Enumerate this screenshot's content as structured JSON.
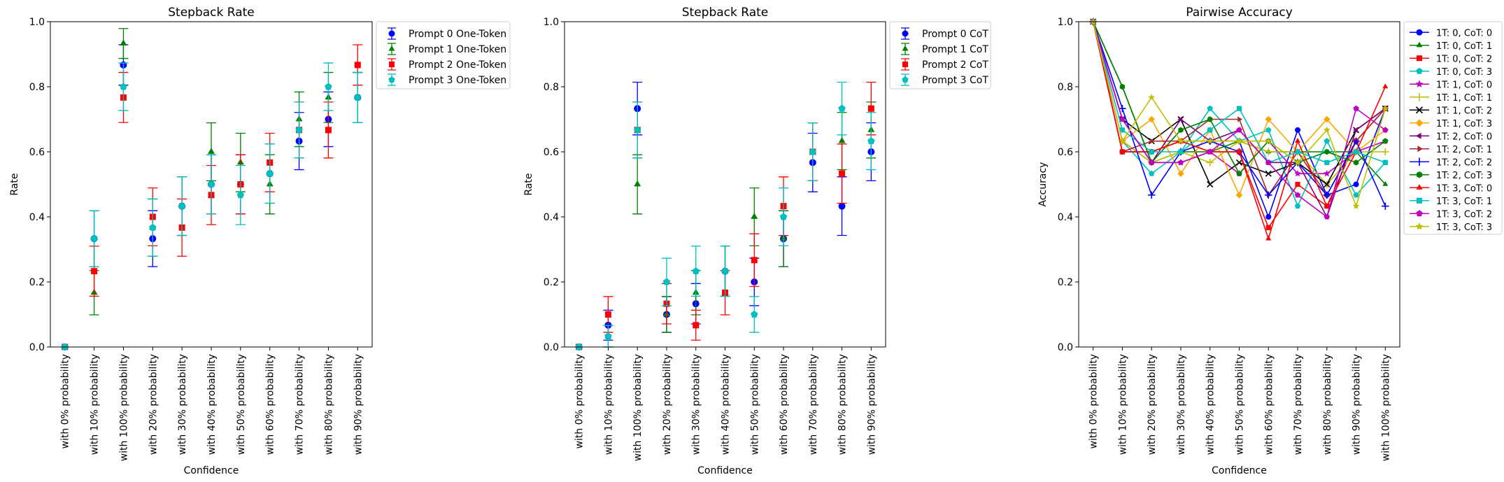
{
  "chart_data": [
    {
      "type": "scatter",
      "title": "Stepback Rate",
      "xlabel": "Confidence",
      "ylabel": "Rate",
      "ylim": [
        0,
        1
      ],
      "yticks": [
        "0.0",
        "0.2",
        "0.4",
        "0.6",
        "0.8",
        "1.0"
      ],
      "categories": [
        "with 0% probability",
        "with 10% probability",
        "with 100% probability",
        "with 20% probability",
        "with 30% probability",
        "with 40% probability",
        "with 50% probability",
        "with 60% probability",
        "with 70% probability",
        "with 80% probability",
        "with 90% probability"
      ],
      "legend_position": "outside-top-right",
      "error_bars": true,
      "series": [
        {
          "name": "Prompt 0 One-Token",
          "color": "#0000ff",
          "marker": "circle",
          "values": [
            0.0,
            0.333,
            0.867,
            0.333,
            0.433,
            0.5,
            0.5,
            0.533,
            0.633,
            0.7,
            0.767
          ],
          "errors": [
            0.0,
            0.086,
            0.062,
            0.086,
            0.09,
            0.091,
            0.091,
            0.091,
            0.088,
            0.084,
            0.077
          ]
        },
        {
          "name": "Prompt 1 One-Token",
          "color": "#008000",
          "marker": "triangle",
          "values": [
            0.0,
            0.167,
            0.933,
            0.367,
            0.433,
            0.6,
            0.567,
            0.5,
            0.7,
            0.767,
            0.767
          ],
          "errors": [
            0.0,
            0.068,
            0.046,
            0.088,
            0.09,
            0.089,
            0.09,
            0.091,
            0.084,
            0.077,
            0.077
          ]
        },
        {
          "name": "Prompt 2 One-Token",
          "color": "#ff0000",
          "marker": "square",
          "values": [
            0.0,
            0.233,
            0.767,
            0.4,
            0.367,
            0.467,
            0.5,
            0.567,
            0.667,
            0.667,
            0.867
          ],
          "errors": [
            0.0,
            0.077,
            0.077,
            0.089,
            0.088,
            0.091,
            0.091,
            0.09,
            0.086,
            0.086,
            0.062
          ]
        },
        {
          "name": "Prompt 3 One-Token",
          "color": "#00bfbf",
          "marker": "pentagon",
          "values": [
            0.0,
            0.333,
            0.8,
            0.367,
            0.433,
            0.5,
            0.467,
            0.533,
            0.667,
            0.8,
            0.767
          ],
          "errors": [
            0.0,
            0.086,
            0.073,
            0.088,
            0.09,
            0.091,
            0.091,
            0.091,
            0.086,
            0.073,
            0.077
          ]
        }
      ]
    },
    {
      "type": "scatter",
      "title": "Stepback Rate",
      "xlabel": "Confidence",
      "ylabel": "Rate",
      "ylim": [
        0,
        1
      ],
      "yticks": [
        "0.0",
        "0.2",
        "0.4",
        "0.6",
        "0.8",
        "1.0"
      ],
      "categories": [
        "with 0% probability",
        "with 10% probability",
        "with 100% probability",
        "with 20% probability",
        "with 30% probability",
        "with 40% probability",
        "with 50% probability",
        "with 60% probability",
        "with 70% probability",
        "with 80% probability",
        "with 90% probability"
      ],
      "legend_position": "outside-top-right",
      "error_bars": true,
      "series": [
        {
          "name": "Prompt 0 CoT",
          "color": "#0000ff",
          "marker": "circle",
          "values": [
            0.0,
            0.067,
            0.733,
            0.1,
            0.133,
            0.233,
            0.2,
            0.333,
            0.567,
            0.433,
            0.6
          ],
          "errors": [
            0.0,
            0.046,
            0.081,
            0.055,
            0.062,
            0.077,
            0.073,
            0.086,
            0.09,
            0.09,
            0.089
          ]
        },
        {
          "name": "Prompt 1 CoT",
          "color": "#008000",
          "marker": "triangle",
          "values": [
            0.0,
            0.033,
            0.5,
            0.1,
            0.167,
            0.233,
            0.4,
            0.333,
            0.6,
            0.633,
            0.667
          ],
          "errors": [
            0.0,
            0.033,
            0.091,
            0.055,
            0.068,
            0.077,
            0.089,
            0.086,
            0.089,
            0.088,
            0.086
          ]
        },
        {
          "name": "Prompt 2 CoT",
          "color": "#ff0000",
          "marker": "square",
          "values": [
            0.0,
            0.1,
            0.667,
            0.133,
            0.067,
            0.167,
            0.267,
            0.433,
            0.6,
            0.533,
            0.733
          ],
          "errors": [
            0.0,
            0.055,
            0.086,
            0.062,
            0.046,
            0.068,
            0.081,
            0.09,
            0.089,
            0.091,
            0.081
          ]
        },
        {
          "name": "Prompt 3 CoT",
          "color": "#00bfbf",
          "marker": "pentagon",
          "values": [
            0.0,
            0.033,
            0.667,
            0.2,
            0.233,
            0.233,
            0.1,
            0.4,
            0.6,
            0.733,
            0.633
          ],
          "errors": [
            0.0,
            0.033,
            0.086,
            0.073,
            0.077,
            0.077,
            0.055,
            0.089,
            0.089,
            0.081,
            0.088
          ]
        }
      ]
    },
    {
      "type": "line",
      "title": "Pairwise Accuracy",
      "xlabel": "Confidence",
      "ylabel": "Accuracy",
      "ylim": [
        0,
        1
      ],
      "yticks": [
        "0.0",
        "0.2",
        "0.4",
        "0.6",
        "0.8",
        "1.0"
      ],
      "categories": [
        "with 0% probability",
        "with 10% probability",
        "with 20% probability",
        "with 30% probability",
        "with 40% probability",
        "with 50% probability",
        "with 60% probability",
        "with 70% probability",
        "with 80% probability",
        "with 90% probability",
        "with 100% probability"
      ],
      "legend_position": "outside-top-right",
      "series": [
        {
          "name": "1T: 0, CoT: 0",
          "color": "#0000ff",
          "marker": "circle",
          "values": [
            1.0,
            0.6,
            0.6,
            0.633,
            0.633,
            0.633,
            0.4,
            0.667,
            0.467,
            0.5,
            0.733
          ]
        },
        {
          "name": "1T: 0, CoT: 1",
          "color": "#008000",
          "marker": "triangle",
          "values": [
            1.0,
            0.8,
            0.567,
            0.6,
            0.6,
            0.633,
            0.6,
            0.6,
            0.6,
            0.6,
            0.5
          ]
        },
        {
          "name": "1T: 0, CoT: 2",
          "color": "#ff0000",
          "marker": "square",
          "values": [
            1.0,
            0.6,
            0.6,
            0.633,
            0.6,
            0.6,
            0.367,
            0.5,
            0.433,
            0.633,
            0.733
          ]
        },
        {
          "name": "1T: 0, CoT: 3",
          "color": "#00bfbf",
          "marker": "pentagon",
          "values": [
            1.0,
            0.633,
            0.533,
            0.6,
            0.733,
            0.633,
            0.667,
            0.433,
            0.633,
            0.467,
            0.567
          ]
        },
        {
          "name": "1T: 1, CoT: 0",
          "color": "#bf00bf",
          "marker": "star",
          "values": [
            1.0,
            0.633,
            0.567,
            0.567,
            0.6,
            0.533,
            0.633,
            0.533,
            0.533,
            0.6,
            0.633
          ]
        },
        {
          "name": "1T: 1, CoT: 1",
          "color": "#bfbf00",
          "marker": "plus",
          "values": [
            1.0,
            0.633,
            0.567,
            0.6,
            0.567,
            0.633,
            0.6,
            0.6,
            0.5,
            0.6,
            0.6
          ]
        },
        {
          "name": "1T: 1, CoT: 2",
          "color": "#000000",
          "marker": "x",
          "values": [
            1.0,
            0.7,
            0.633,
            0.7,
            0.5,
            0.567,
            0.533,
            0.567,
            0.5,
            0.667,
            0.733
          ]
        },
        {
          "name": "1T: 1, CoT: 3",
          "color": "#ffa500",
          "marker": "diamond",
          "values": [
            1.0,
            0.633,
            0.7,
            0.533,
            0.667,
            0.467,
            0.7,
            0.6,
            0.7,
            0.6,
            0.667
          ]
        },
        {
          "name": "1T: 2, CoT: 0",
          "color": "#800080",
          "marker": "triangle-left",
          "values": [
            1.0,
            0.7,
            0.567,
            0.7,
            0.633,
            0.667,
            0.567,
            0.567,
            0.4,
            0.667,
            0.733
          ]
        },
        {
          "name": "1T: 2, CoT: 1",
          "color": "#a52a2a",
          "marker": "triangle-right",
          "values": [
            1.0,
            0.6,
            0.633,
            0.633,
            0.7,
            0.7,
            0.467,
            0.6,
            0.467,
            0.633,
            0.733
          ]
        },
        {
          "name": "1T: 2, CoT: 2",
          "color": "#0000ff",
          "marker": "plus",
          "values": [
            1.0,
            0.733,
            0.467,
            0.6,
            0.633,
            0.6,
            0.467,
            0.567,
            0.467,
            0.633,
            0.433
          ]
        },
        {
          "name": "1T: 2, CoT: 3",
          "color": "#008000",
          "marker": "hexagon",
          "values": [
            1.0,
            0.8,
            0.567,
            0.667,
            0.7,
            0.533,
            0.633,
            0.567,
            0.6,
            0.567,
            0.633
          ]
        },
        {
          "name": "1T: 3, CoT: 0",
          "color": "#ff0000",
          "marker": "triangle",
          "values": [
            1.0,
            0.6,
            0.6,
            0.633,
            0.6,
            0.6,
            0.333,
            0.633,
            0.433,
            0.6,
            0.8
          ]
        },
        {
          "name": "1T: 3, CoT: 1",
          "color": "#00bfbf",
          "marker": "square",
          "values": [
            1.0,
            0.667,
            0.6,
            0.6,
            0.667,
            0.733,
            0.567,
            0.6,
            0.567,
            0.6,
            0.567
          ]
        },
        {
          "name": "1T: 3, CoT: 2",
          "color": "#bf00bf",
          "marker": "pentagon",
          "values": [
            1.0,
            0.7,
            0.567,
            0.567,
            0.6,
            0.667,
            0.567,
            0.467,
            0.4,
            0.733,
            0.667
          ]
        },
        {
          "name": "1T: 3, CoT: 3",
          "color": "#bfbf00",
          "marker": "star",
          "values": [
            1.0,
            0.633,
            0.767,
            0.633,
            0.633,
            0.633,
            0.633,
            0.567,
            0.667,
            0.433,
            0.733
          ]
        }
      ]
    }
  ]
}
